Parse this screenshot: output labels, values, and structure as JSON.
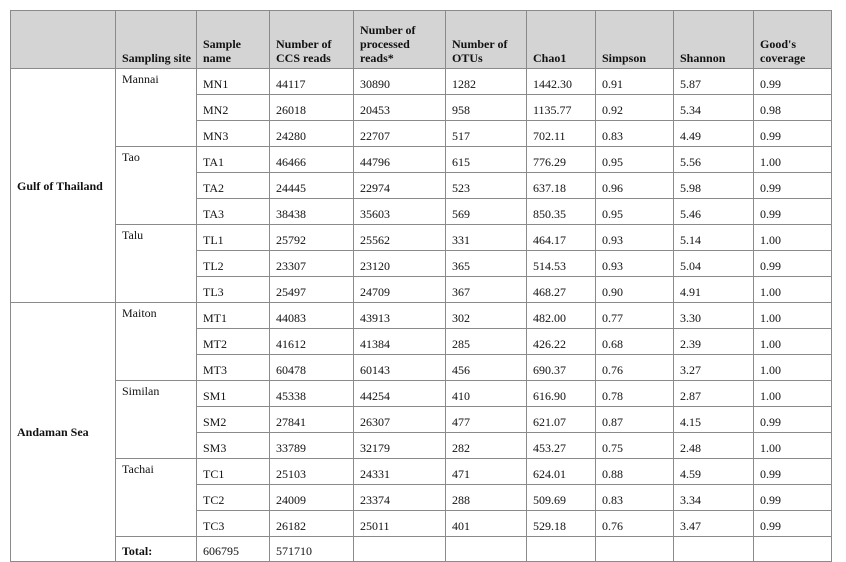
{
  "headers": {
    "site": "Sampling site",
    "sample": "Sample name",
    "ccs": "Number of CCS reads",
    "processed": "Number of processed reads*",
    "otus": "Number of OTUs",
    "chao1": "Chao1",
    "simpson": "Simpson",
    "shannon": "Shannon",
    "coverage": "Good's coverage"
  },
  "regions": {
    "gulf": "Gulf of Thailand",
    "andaman": "Andaman Sea"
  },
  "sites": {
    "mannai": "Mannai",
    "tao": "Tao",
    "talu": "Talu",
    "maiton": "Maiton",
    "similan": "Similan",
    "tachai": "Tachai"
  },
  "rows": [
    {
      "sample": "MN1",
      "ccs": "44117",
      "processed": "30890",
      "otus": "1282",
      "chao1": "1442.30",
      "simpson": "0.91",
      "shannon": "5.87",
      "coverage": "0.99"
    },
    {
      "sample": "MN2",
      "ccs": "26018",
      "processed": "20453",
      "otus": "958",
      "chao1": "1135.77",
      "simpson": "0.92",
      "shannon": "5.34",
      "coverage": "0.98"
    },
    {
      "sample": "MN3",
      "ccs": "24280",
      "processed": "22707",
      "otus": "517",
      "chao1": "702.11",
      "simpson": "0.83",
      "shannon": "4.49",
      "coverage": "0.99"
    },
    {
      "sample": "TA1",
      "ccs": "46466",
      "processed": "44796",
      "otus": "615",
      "chao1": "776.29",
      "simpson": "0.95",
      "shannon": "5.56",
      "coverage": "1.00"
    },
    {
      "sample": "TA2",
      "ccs": "24445",
      "processed": "22974",
      "otus": "523",
      "chao1": "637.18",
      "simpson": "0.96",
      "shannon": "5.98",
      "coverage": "0.99"
    },
    {
      "sample": "TA3",
      "ccs": "38438",
      "processed": "35603",
      "otus": "569",
      "chao1": "850.35",
      "simpson": "0.95",
      "shannon": "5.46",
      "coverage": "0.99"
    },
    {
      "sample": "TL1",
      "ccs": "25792",
      "processed": "25562",
      "otus": "331",
      "chao1": "464.17",
      "simpson": "0.93",
      "shannon": "5.14",
      "coverage": "1.00"
    },
    {
      "sample": "TL2",
      "ccs": "23307",
      "processed": "23120",
      "otus": "365",
      "chao1": "514.53",
      "simpson": "0.93",
      "shannon": "5.04",
      "coverage": "0.99"
    },
    {
      "sample": "TL3",
      "ccs": "25497",
      "processed": "24709",
      "otus": "367",
      "chao1": "468.27",
      "simpson": "0.90",
      "shannon": "4.91",
      "coverage": "1.00"
    },
    {
      "sample": "MT1",
      "ccs": "44083",
      "processed": "43913",
      "otus": "302",
      "chao1": "482.00",
      "simpson": "0.77",
      "shannon": "3.30",
      "coverage": "1.00"
    },
    {
      "sample": "MT2",
      "ccs": "41612",
      "processed": "41384",
      "otus": "285",
      "chao1": "426.22",
      "simpson": "0.68",
      "shannon": "2.39",
      "coverage": "1.00"
    },
    {
      "sample": "MT3",
      "ccs": "60478",
      "processed": "60143",
      "otus": "456",
      "chao1": "690.37",
      "simpson": "0.76",
      "shannon": "3.27",
      "coverage": "1.00"
    },
    {
      "sample": "SM1",
      "ccs": "45338",
      "processed": "44254",
      "otus": "410",
      "chao1": "616.90",
      "simpson": "0.78",
      "shannon": "2.87",
      "coverage": "1.00"
    },
    {
      "sample": "SM2",
      "ccs": "27841",
      "processed": "26307",
      "otus": "477",
      "chao1": "621.07",
      "simpson": "0.87",
      "shannon": "4.15",
      "coverage": "0.99"
    },
    {
      "sample": "SM3",
      "ccs": "33789",
      "processed": "32179",
      "otus": "282",
      "chao1": "453.27",
      "simpson": "0.75",
      "shannon": "2.48",
      "coverage": "1.00"
    },
    {
      "sample": "TC1",
      "ccs": "25103",
      "processed": "24331",
      "otus": "471",
      "chao1": "624.01",
      "simpson": "0.88",
      "shannon": "4.59",
      "coverage": "0.99"
    },
    {
      "sample": "TC2",
      "ccs": "24009",
      "processed": "23374",
      "otus": "288",
      "chao1": "509.69",
      "simpson": "0.83",
      "shannon": "3.34",
      "coverage": "0.99"
    },
    {
      "sample": "TC3",
      "ccs": "26182",
      "processed": "25011",
      "otus": "401",
      "chao1": "529.18",
      "simpson": "0.76",
      "shannon": "3.47",
      "coverage": "0.99"
    }
  ],
  "total": {
    "label": "Total:",
    "ccs": "606795",
    "processed": "571710"
  }
}
